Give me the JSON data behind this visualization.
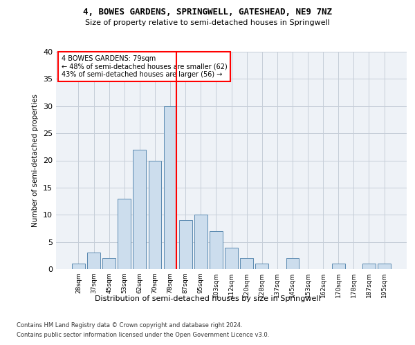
{
  "title1": "4, BOWES GARDENS, SPRINGWELL, GATESHEAD, NE9 7NZ",
  "title2": "Size of property relative to semi-detached houses in Springwell",
  "xlabel": "Distribution of semi-detached houses by size in Springwell",
  "ylabel": "Number of semi-detached properties",
  "categories": [
    "28sqm",
    "37sqm",
    "45sqm",
    "53sqm",
    "62sqm",
    "70sqm",
    "78sqm",
    "87sqm",
    "95sqm",
    "103sqm",
    "112sqm",
    "120sqm",
    "128sqm",
    "137sqm",
    "145sqm",
    "153sqm",
    "162sqm",
    "170sqm",
    "178sqm",
    "187sqm",
    "195sqm"
  ],
  "values": [
    1,
    3,
    2,
    13,
    22,
    20,
    30,
    9,
    10,
    7,
    4,
    2,
    1,
    0,
    2,
    0,
    0,
    1,
    0,
    1,
    1
  ],
  "bar_color": "#ccdded",
  "bar_edge_color": "#5a8ab0",
  "vline_color": "red",
  "annotation_title": "4 BOWES GARDENS: 79sqm",
  "annotation_line1": "← 48% of semi-detached houses are smaller (62)",
  "annotation_line2": "43% of semi-detached houses are larger (56) →",
  "ylim": [
    0,
    40
  ],
  "yticks": [
    0,
    5,
    10,
    15,
    20,
    25,
    30,
    35,
    40
  ],
  "footer1": "Contains HM Land Registry data © Crown copyright and database right 2024.",
  "footer2": "Contains public sector information licensed under the Open Government Licence v3.0.",
  "bg_color": "#eef2f7",
  "grid_color": "#c5cdd8"
}
